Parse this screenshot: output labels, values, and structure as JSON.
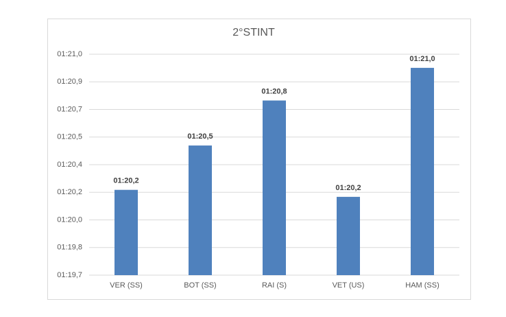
{
  "chart_data": {
    "type": "bar",
    "title": "2°STINT",
    "categories": [
      "VER (SS)",
      "BOT (SS)",
      "RAI (S)",
      "VET (US)",
      "HAM (SS)"
    ],
    "values": [
      80.2,
      80.473,
      80.75,
      80.157,
      80.951
    ],
    "value_labels": [
      "01:20,2",
      "01:20,5",
      "01:20,8",
      "01:20,2",
      "01:21,0"
    ],
    "color": "#4f81bd",
    "ylim": [
      79.675,
      81.035
    ],
    "yticks": [
      {
        "value": 79.675,
        "label": "01:19,7"
      },
      {
        "value": 79.845,
        "label": "01:19,8"
      },
      {
        "value": 80.015,
        "label": "01:20,0"
      },
      {
        "value": 80.185,
        "label": "01:20,2"
      },
      {
        "value": 80.355,
        "label": "01:20,4"
      },
      {
        "value": 80.525,
        "label": "01:20,5"
      },
      {
        "value": 80.695,
        "label": "01:20,7"
      },
      {
        "value": 80.865,
        "label": "01:20,9"
      },
      {
        "value": 81.035,
        "label": "01:21,0"
      }
    ],
    "grid": true
  }
}
